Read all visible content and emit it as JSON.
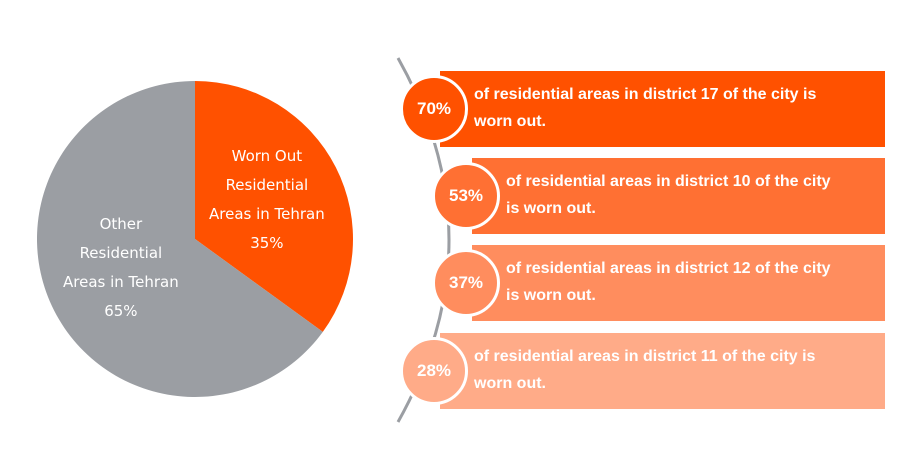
{
  "chart_data": [
    {
      "type": "pie",
      "slices": [
        {
          "label_lines": [
            "Worn Out",
            "Residential",
            "Areas in Tehran"
          ],
          "value": 35,
          "value_text": "35%",
          "color": "#ff5100"
        },
        {
          "label_lines": [
            "Other",
            "Residential",
            "Areas in Tehran"
          ],
          "value": 65,
          "value_text": "65%",
          "color": "#9b9ea3"
        }
      ]
    },
    {
      "type": "bar",
      "items": [
        {
          "value": 70,
          "value_text": "70%",
          "text": "of residential areas in district 17 of the city is worn out.",
          "lines": [
            "of residential areas in district 17 of the city is",
            "worn out."
          ],
          "color": "#ff5100"
        },
        {
          "value": 53,
          "value_text": "53%",
          "text": "of residential areas in district 10 of the city is worn out.",
          "lines": [
            "of residential areas in district 10 of the city",
            "is worn out."
          ],
          "color": "#ff7033"
        },
        {
          "value": 37,
          "value_text": "37%",
          "text": "of residential areas in district 12 of the city is worn out.",
          "lines": [
            "of residential areas in district 12 of the city",
            "is worn out."
          ],
          "color": "#ff8d5e"
        },
        {
          "value": 28,
          "value_text": "28%",
          "text": "of residential areas in district 11 of the city is worn out.",
          "lines": [
            "of residential areas in district 11 of the city is",
            "worn out."
          ],
          "color": "#ffab88"
        }
      ]
    }
  ]
}
